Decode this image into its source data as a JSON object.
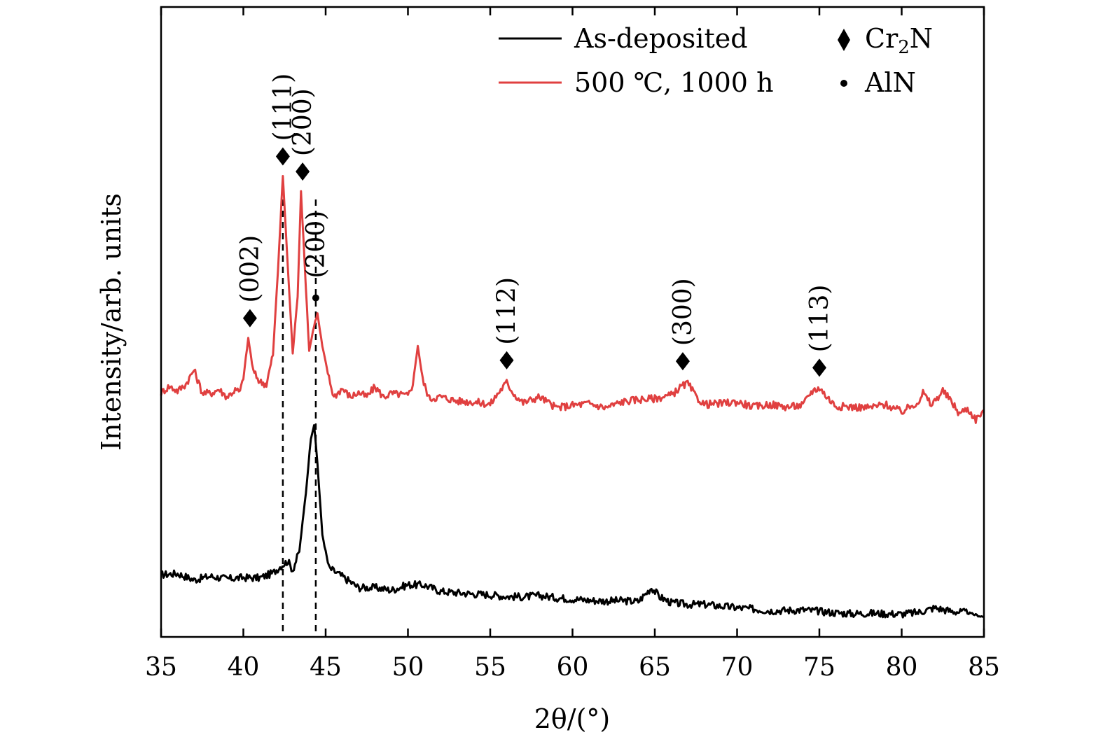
{
  "chart_data": {
    "type": "line",
    "title": "",
    "xlabel": "2θ/(°)",
    "ylabel": "Intensity/arb. units",
    "xlim": [
      35,
      85
    ],
    "xticks": [
      "35",
      "40",
      "45",
      "50",
      "55",
      "60",
      "65",
      "70",
      "75",
      "80",
      "85"
    ],
    "yticks": "none",
    "grid": false,
    "legend_position": "top-right",
    "legend": {
      "series": [
        {
          "name": "As-deposited",
          "color": "#000000"
        },
        {
          "name": "500 ℃, 1000 h",
          "color": "#e04040"
        }
      ],
      "markers": [
        {
          "symbol": "diamond",
          "name_prefix": "Cr",
          "name_sub": "2",
          "name_suffix": "N"
        },
        {
          "symbol": "dot",
          "name": "AlN"
        }
      ]
    },
    "series": [
      {
        "name": "As-deposited",
        "color": "#000000",
        "y_level": "lower",
        "points": [
          [
            35.0,
            0.74
          ],
          [
            36.0,
            0.88
          ],
          [
            37.0,
            0.12
          ],
          [
            38.0,
            0.55
          ],
          [
            39.0,
            0.25
          ],
          [
            40.0,
            0.4
          ],
          [
            41.0,
            0.35
          ],
          [
            41.8,
            0.95
          ],
          [
            42.3,
            1.8
          ],
          [
            42.7,
            2.35
          ],
          [
            43.0,
            1.3
          ],
          [
            43.4,
            3.5
          ],
          [
            43.8,
            10.5
          ],
          [
            44.1,
            17.0
          ],
          [
            44.3,
            18.6
          ],
          [
            44.5,
            14.0
          ],
          [
            44.8,
            5.5
          ],
          [
            45.2,
            1.55
          ],
          [
            46.0,
            0.55
          ],
          [
            47.0,
            -0.8
          ],
          [
            48.0,
            -0.8
          ],
          [
            49.0,
            -1.1
          ],
          [
            50.0,
            -0.45
          ],
          [
            51.0,
            -0.5
          ],
          [
            52.0,
            -1.25
          ],
          [
            53.0,
            -1.4
          ],
          [
            54.0,
            -1.55
          ],
          [
            55.0,
            -1.65
          ],
          [
            56.0,
            -1.85
          ],
          [
            57.0,
            -1.9
          ],
          [
            58.0,
            -1.75
          ],
          [
            59.0,
            -2.0
          ],
          [
            60.0,
            -2.15
          ],
          [
            61.0,
            -2.3
          ],
          [
            62.0,
            -2.4
          ],
          [
            63.0,
            -2.35
          ],
          [
            64.0,
            -2.45
          ],
          [
            64.8,
            -0.8
          ],
          [
            65.3,
            -1.9
          ],
          [
            66.0,
            -2.6
          ],
          [
            67.0,
            -2.8
          ],
          [
            68.0,
            -2.8
          ],
          [
            69.0,
            -3.0
          ],
          [
            70.0,
            -3.2
          ],
          [
            71.0,
            -3.35
          ],
          [
            72.0,
            -3.55
          ],
          [
            73.0,
            -3.5
          ],
          [
            74.0,
            -3.45
          ],
          [
            75.0,
            -3.6
          ],
          [
            76.0,
            -3.8
          ],
          [
            77.0,
            -3.9
          ],
          [
            78.0,
            -3.85
          ],
          [
            79.0,
            -3.9
          ],
          [
            80.0,
            -3.95
          ],
          [
            81.0,
            -3.75
          ],
          [
            82.0,
            -3.2
          ],
          [
            83.0,
            -3.6
          ],
          [
            84.0,
            -3.8
          ],
          [
            85.0,
            -4.3
          ]
        ]
      },
      {
        "name": "500 ℃, 1000 h",
        "color": "#e04040",
        "y_level": "upper",
        "points": [
          [
            35.0,
            -0.5
          ],
          [
            35.5,
            0.25
          ],
          [
            36.0,
            -0.3
          ],
          [
            36.5,
            0.5
          ],
          [
            37.0,
            2.2
          ],
          [
            37.5,
            -0.5
          ],
          [
            38.0,
            -0.6
          ],
          [
            38.5,
            -0.1
          ],
          [
            39.0,
            -1.0
          ],
          [
            39.5,
            -0.2
          ],
          [
            39.8,
            -0.4
          ],
          [
            40.0,
            1.2
          ],
          [
            40.3,
            6.0
          ],
          [
            40.6,
            2.0
          ],
          [
            41.0,
            0.8
          ],
          [
            41.4,
            0.5
          ],
          [
            41.8,
            4.0
          ],
          [
            42.1,
            14.0
          ],
          [
            42.4,
            25.3
          ],
          [
            42.7,
            14.5
          ],
          [
            43.0,
            4.2
          ],
          [
            43.3,
            11.0
          ],
          [
            43.5,
            23.5
          ],
          [
            43.8,
            12.0
          ],
          [
            44.0,
            4.5
          ],
          [
            44.3,
            7.5
          ],
          [
            44.5,
            8.9
          ],
          [
            44.8,
            5.0
          ],
          [
            45.2,
            1.2
          ],
          [
            45.5,
            -1.0
          ],
          [
            46.0,
            0.0
          ],
          [
            46.5,
            -1.0
          ],
          [
            47.0,
            -0.5
          ],
          [
            47.5,
            -1.0
          ],
          [
            48.0,
            0.2
          ],
          [
            48.5,
            -1.0
          ],
          [
            49.0,
            -0.6
          ],
          [
            49.5,
            -0.7
          ],
          [
            50.0,
            -0.9
          ],
          [
            50.3,
            0.5
          ],
          [
            50.6,
            5.1
          ],
          [
            50.9,
            1.0
          ],
          [
            51.3,
            -1.2
          ],
          [
            52.0,
            -1.0
          ],
          [
            53.0,
            -1.5
          ],
          [
            54.0,
            -1.6
          ],
          [
            55.0,
            -1.9
          ],
          [
            55.5,
            -0.5
          ],
          [
            56.0,
            0.7
          ],
          [
            56.5,
            -0.8
          ],
          [
            57.0,
            -1.7
          ],
          [
            58.0,
            -1.0
          ],
          [
            59.0,
            -2.3
          ],
          [
            60.0,
            -2.0
          ],
          [
            61.0,
            -1.8
          ],
          [
            62.0,
            -2.3
          ],
          [
            63.0,
            -1.6
          ],
          [
            64.0,
            -1.3
          ],
          [
            65.0,
            -1.2
          ],
          [
            66.0,
            -0.8
          ],
          [
            66.6,
            0.2
          ],
          [
            67.0,
            0.6
          ],
          [
            67.5,
            -1.0
          ],
          [
            68.0,
            -1.9
          ],
          [
            69.0,
            -1.8
          ],
          [
            70.0,
            -1.6
          ],
          [
            71.0,
            -2.2
          ],
          [
            72.0,
            -1.9
          ],
          [
            73.0,
            -2.2
          ],
          [
            74.0,
            -2.0
          ],
          [
            74.5,
            -0.4
          ],
          [
            75.0,
            0.1
          ],
          [
            75.5,
            -1.1
          ],
          [
            76.0,
            -2.1
          ],
          [
            77.0,
            -2.2
          ],
          [
            78.0,
            -2.3
          ],
          [
            79.0,
            -1.9
          ],
          [
            80.0,
            -2.8
          ],
          [
            81.0,
            -1.6
          ],
          [
            81.3,
            -0.5
          ],
          [
            81.8,
            -2.0
          ],
          [
            82.5,
            -0.3
          ],
          [
            83.0,
            -1.5
          ],
          [
            83.5,
            -3.0
          ],
          [
            84.0,
            -2.4
          ],
          [
            84.5,
            -3.7
          ],
          [
            85.0,
            -2.6
          ]
        ]
      }
    ],
    "reference_lines": [
      {
        "x": 42.4,
        "style": "dashed"
      },
      {
        "x": 44.4,
        "style": "dashed"
      }
    ],
    "peak_annotations": [
      {
        "x": 40.4,
        "marker": "diamond",
        "label": "(002)"
      },
      {
        "x": 42.4,
        "marker": "diamond",
        "label": "(111)"
      },
      {
        "x": 43.6,
        "marker": "diamond",
        "label": "(200)"
      },
      {
        "x": 44.4,
        "marker": "dot",
        "label": "(200)"
      },
      {
        "x": 56.0,
        "marker": "diamond",
        "label": "(112)"
      },
      {
        "x": 66.7,
        "marker": "diamond",
        "label": "(300)"
      },
      {
        "x": 75.0,
        "marker": "diamond",
        "label": "(113)"
      }
    ]
  }
}
